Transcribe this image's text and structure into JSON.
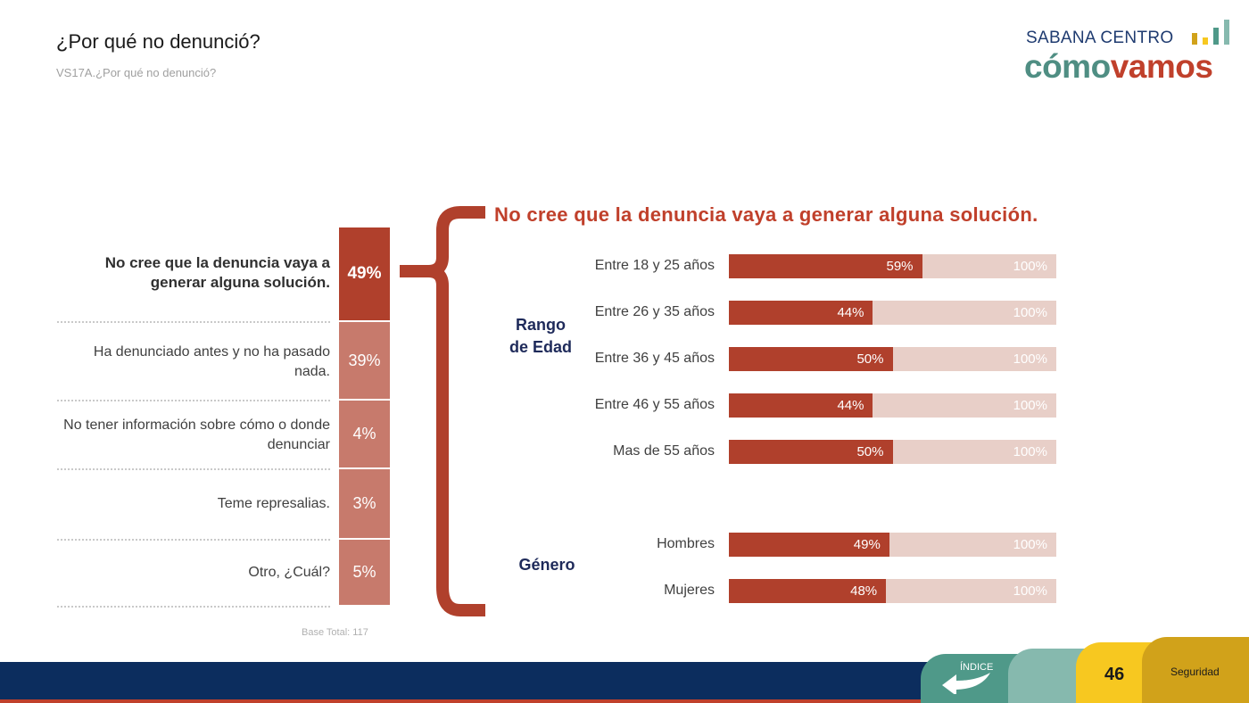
{
  "header": {
    "title": "¿Por qué no denunció?",
    "subtitle": "VS17A.¿Por qué no denunció?"
  },
  "logo": {
    "top_text": "SABANA CENTRO",
    "main_part1": "cómo",
    "main_part2": "vamos",
    "bar_colors": [
      "#d1a21a",
      "#f7c820",
      "#4f9989",
      "#86b9ae"
    ]
  },
  "chart_data": [
    {
      "type": "bar",
      "orientation": "stacked-vertical",
      "categories": [
        "No cree que la denuncia vaya a generar alguna solución.",
        "Ha denunciado antes y no ha pasado nada.",
        "No tener información sobre cómo o donde denunciar",
        "Teme represalias.",
        "Otro, ¿Cuál?"
      ],
      "values": [
        49,
        39,
        4,
        3,
        5
      ],
      "value_labels": [
        "49%",
        "39%",
        "4%",
        "3%",
        "5%"
      ],
      "base_total": "Base Total: 117"
    },
    {
      "type": "bar",
      "orientation": "horizontal",
      "title": "No cree que la denuncia vaya a generar alguna solución.",
      "xlim": [
        0,
        100
      ],
      "total_label": "100%",
      "groups": [
        {
          "label": "Rango de Edad",
          "categories": [
            "Entre 18 y 25 años",
            "Entre 26 y 35 años",
            "Entre 36 y 45 años",
            "Entre 46 y 55 años",
            "Mas de 55 años"
          ],
          "values": [
            59,
            44,
            50,
            44,
            50
          ],
          "value_labels": [
            "59%",
            "44%",
            "50%",
            "44%",
            "50%"
          ]
        },
        {
          "label": "Género",
          "categories": [
            "Hombres",
            "Mujeres"
          ],
          "values": [
            49,
            48
          ],
          "value_labels": [
            "49%",
            "48%"
          ]
        }
      ],
      "colors": {
        "fill": "#b0402c",
        "background": "#e8cfc8"
      }
    }
  ],
  "footer": {
    "indice_label": "ÍNDICE",
    "page_number": "46",
    "section": "Seguridad"
  }
}
